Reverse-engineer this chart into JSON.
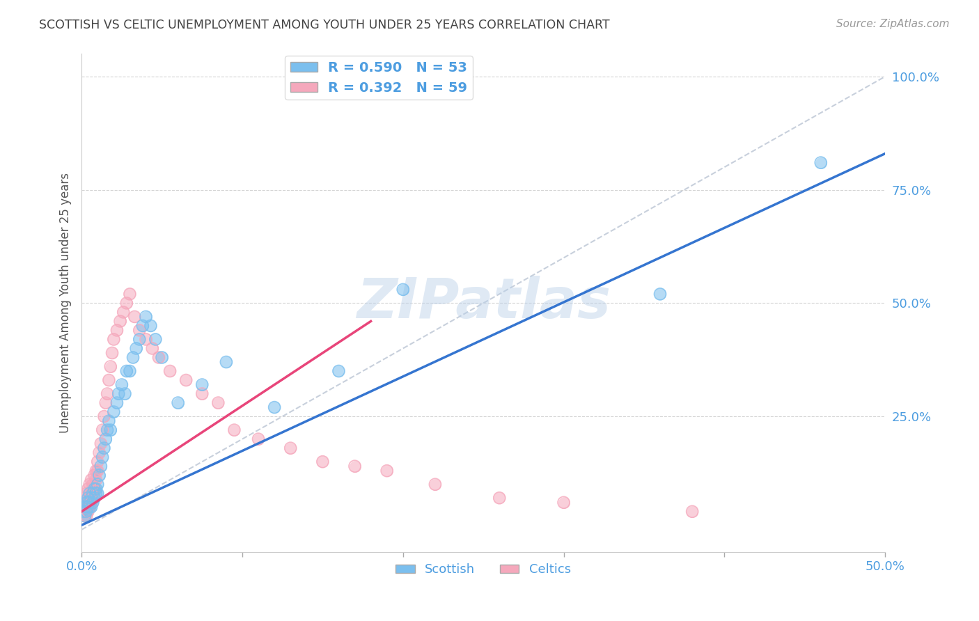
{
  "title": "SCOTTISH VS CELTIC UNEMPLOYMENT AMONG YOUTH UNDER 25 YEARS CORRELATION CHART",
  "source": "Source: ZipAtlas.com",
  "ylabel": "Unemployment Among Youth under 25 years",
  "xlim": [
    0.0,
    0.5
  ],
  "ylim": [
    -0.05,
    1.05
  ],
  "xticks": [
    0.0,
    0.1,
    0.2,
    0.3,
    0.4,
    0.5
  ],
  "xtick_labels": [
    "0.0%",
    "",
    "",
    "",
    "",
    "50.0%"
  ],
  "ytick_labels": [
    "25.0%",
    "50.0%",
    "75.0%",
    "100.0%"
  ],
  "yticks": [
    0.25,
    0.5,
    0.75,
    1.0
  ],
  "scottish_R": 0.59,
  "scottish_N": 53,
  "celtics_R": 0.392,
  "celtics_N": 59,
  "scottish_color": "#7bbfee",
  "celtics_color": "#f5a8bc",
  "scottish_line_color": "#3575d0",
  "celtics_line_color": "#e8457a",
  "diagonal_color": "#c8d0dc",
  "background_color": "#ffffff",
  "grid_color": "#d0d0d0",
  "text_color": "#4d9de0",
  "title_color": "#444444",
  "watermark": "ZIPatlas",
  "scottish_line_x": [
    0.0,
    0.5
  ],
  "scottish_line_y": [
    0.01,
    0.83
  ],
  "celtics_line_x": [
    0.0,
    0.18
  ],
  "celtics_line_y": [
    0.04,
    0.46
  ],
  "scottish_x": [
    0.001,
    0.002,
    0.002,
    0.003,
    0.003,
    0.003,
    0.004,
    0.004,
    0.004,
    0.005,
    0.005,
    0.005,
    0.006,
    0.006,
    0.007,
    0.007,
    0.008,
    0.008,
    0.009,
    0.009,
    0.01,
    0.01,
    0.011,
    0.012,
    0.013,
    0.014,
    0.015,
    0.016,
    0.017,
    0.018,
    0.02,
    0.022,
    0.023,
    0.025,
    0.027,
    0.028,
    0.03,
    0.032,
    0.034,
    0.036,
    0.038,
    0.04,
    0.043,
    0.046,
    0.05,
    0.06,
    0.075,
    0.09,
    0.12,
    0.16,
    0.2,
    0.36,
    0.46
  ],
  "scottish_y": [
    0.04,
    0.05,
    0.03,
    0.06,
    0.04,
    0.05,
    0.05,
    0.07,
    0.06,
    0.05,
    0.06,
    0.08,
    0.07,
    0.05,
    0.08,
    0.06,
    0.09,
    0.07,
    0.09,
    0.08,
    0.1,
    0.08,
    0.12,
    0.14,
    0.16,
    0.18,
    0.2,
    0.22,
    0.24,
    0.22,
    0.26,
    0.28,
    0.3,
    0.32,
    0.3,
    0.35,
    0.35,
    0.38,
    0.4,
    0.42,
    0.45,
    0.47,
    0.45,
    0.42,
    0.38,
    0.28,
    0.32,
    0.37,
    0.27,
    0.35,
    0.53,
    0.52,
    0.81
  ],
  "celtics_x": [
    0.001,
    0.001,
    0.002,
    0.002,
    0.002,
    0.003,
    0.003,
    0.003,
    0.004,
    0.004,
    0.004,
    0.005,
    0.005,
    0.005,
    0.006,
    0.006,
    0.006,
    0.007,
    0.007,
    0.008,
    0.008,
    0.009,
    0.009,
    0.01,
    0.01,
    0.011,
    0.012,
    0.013,
    0.014,
    0.015,
    0.016,
    0.017,
    0.018,
    0.019,
    0.02,
    0.022,
    0.024,
    0.026,
    0.028,
    0.03,
    0.033,
    0.036,
    0.04,
    0.044,
    0.048,
    0.055,
    0.065,
    0.075,
    0.085,
    0.095,
    0.11,
    0.13,
    0.15,
    0.17,
    0.19,
    0.22,
    0.26,
    0.3,
    0.38
  ],
  "celtics_y": [
    0.04,
    0.06,
    0.03,
    0.05,
    0.07,
    0.03,
    0.05,
    0.08,
    0.04,
    0.06,
    0.09,
    0.05,
    0.07,
    0.1,
    0.06,
    0.08,
    0.11,
    0.08,
    0.1,
    0.09,
    0.12,
    0.11,
    0.13,
    0.13,
    0.15,
    0.17,
    0.19,
    0.22,
    0.25,
    0.28,
    0.3,
    0.33,
    0.36,
    0.39,
    0.42,
    0.44,
    0.46,
    0.48,
    0.5,
    0.52,
    0.47,
    0.44,
    0.42,
    0.4,
    0.38,
    0.35,
    0.33,
    0.3,
    0.28,
    0.22,
    0.2,
    0.18,
    0.15,
    0.14,
    0.13,
    0.1,
    0.07,
    0.06,
    0.04
  ]
}
